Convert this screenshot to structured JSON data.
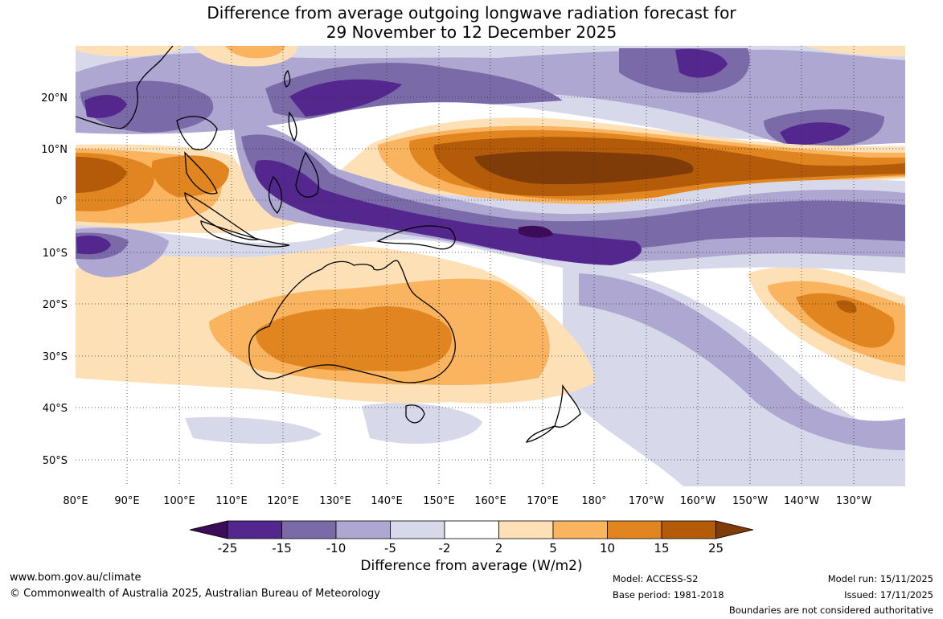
{
  "title_line1": "Difference from average outgoing longwave radiation forecast for",
  "title_line2": "29 November to 12 December 2025",
  "lat_labels": [
    "20°N",
    "10°N",
    "0°",
    "10°S",
    "20°S",
    "30°S",
    "40°S",
    "50°S"
  ],
  "lon_labels": [
    "80°E",
    "90°E",
    "100°E",
    "110°E",
    "120°E",
    "130°E",
    "140°E",
    "150°E",
    "160°E",
    "170°E",
    "180°",
    "170°W",
    "160°W",
    "150°W",
    "140°W",
    "130°W"
  ],
  "colorbar": {
    "ticks": [
      "-25",
      "-15",
      "-10",
      "-5",
      "-2",
      "2",
      "5",
      "10",
      "15",
      "25"
    ],
    "colors": [
      "#3c0c59",
      "#54278f",
      "#7a6aa8",
      "#ada7d1",
      "#d8d8eb",
      "#ffffff",
      "#fee0b6",
      "#fab45f",
      "#e08520",
      "#b35b08",
      "#7f3b08"
    ],
    "label": "Difference from average (W/m2)"
  },
  "footer": {
    "url": "www.bom.gov.au/climate",
    "copyright": "© Commonwealth of Australia 2025, Australian Bureau of Meteorology",
    "model": "Model: ACCESS-S2",
    "base_period": "Base period: 1981-2018",
    "model_run": "Model run: 15/11/2025",
    "issued": "Issued: 17/11/2025",
    "disclaimer": "Boundaries are not considered authoritative"
  }
}
